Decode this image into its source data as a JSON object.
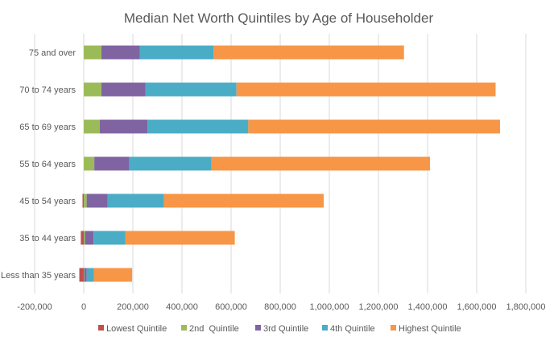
{
  "chart_data": {
    "type": "bar",
    "orientation": "horizontal",
    "stacked": true,
    "title": "Median Net Worth Quintiles by Age of Householder",
    "xlabel": "",
    "ylabel": "",
    "xlim": [
      -200000,
      1800000
    ],
    "xticks": [
      -200000,
      0,
      200000,
      400000,
      600000,
      800000,
      1000000,
      1200000,
      1400000,
      1600000,
      1800000
    ],
    "xtick_labels": [
      "-200,000",
      "0",
      "200,000",
      "400,000",
      "600,000",
      "800,000",
      "1,000,000",
      "1,200,000",
      "1,400,000",
      "1,600,000",
      "1,800,000"
    ],
    "grid": "vertical",
    "legend_position": "bottom",
    "categories": [
      "Less than 35 years",
      "35 to 44 years",
      "45 to 54 years",
      "55 to 64 years",
      "65 to 69 years",
      "70 to 74 years",
      "75 and over"
    ],
    "series": [
      {
        "name": "Lowest Quintile",
        "color": "#C0504D",
        "values": [
          -18000,
          -12000,
          -5000,
          0,
          0,
          0,
          0
        ]
      },
      {
        "name": "2nd  Quintile",
        "color": "#9BBB59",
        "values": [
          2000,
          5000,
          12000,
          43000,
          65000,
          72000,
          72000
        ]
      },
      {
        "name": "3rd Quintile",
        "color": "#8064A2",
        "values": [
          10000,
          35000,
          85000,
          142000,
          195000,
          180000,
          157000
        ]
      },
      {
        "name": "4th Quintile",
        "color": "#4BACC6",
        "values": [
          30000,
          130000,
          230000,
          335000,
          410000,
          370000,
          300000
        ]
      },
      {
        "name": "Highest Quintile",
        "color": "#F79646",
        "values": [
          155000,
          445000,
          650000,
          890000,
          1025000,
          1055000,
          775000
        ]
      }
    ]
  }
}
